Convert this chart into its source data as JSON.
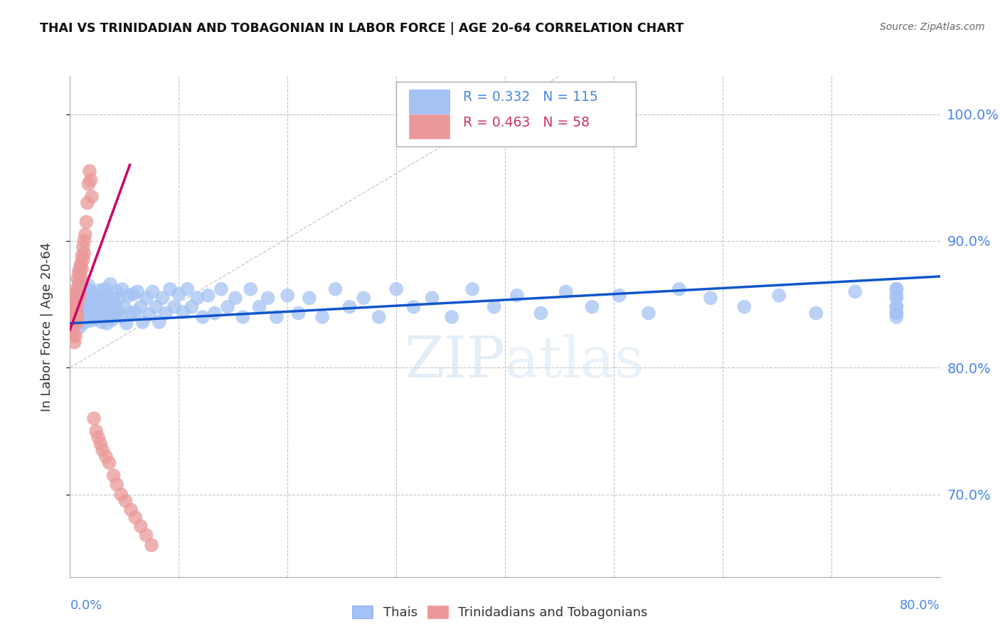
{
  "title": "THAI VS TRINIDADIAN AND TOBAGONIAN IN LABOR FORCE | AGE 20-64 CORRELATION CHART",
  "source": "Source: ZipAtlas.com",
  "ylabel": "In Labor Force | Age 20-64",
  "ytick_values": [
    0.7,
    0.8,
    0.9,
    1.0
  ],
  "xlim": [
    0.0,
    0.8
  ],
  "ylim": [
    0.635,
    1.03
  ],
  "color_blue": "#a4c2f4",
  "color_pink": "#ea9999",
  "color_blue_line": "#1155cc",
  "color_pink_line": "#cc0066",
  "color_axis_labels": "#4a86e8",
  "color_grid": "#b7b7b7",
  "blue_scatter_x": [
    0.005,
    0.007,
    0.008,
    0.009,
    0.01,
    0.01,
    0.011,
    0.012,
    0.013,
    0.014,
    0.015,
    0.015,
    0.016,
    0.016,
    0.017,
    0.018,
    0.018,
    0.019,
    0.02,
    0.021,
    0.022,
    0.022,
    0.023,
    0.024,
    0.025,
    0.026,
    0.027,
    0.028,
    0.029,
    0.03,
    0.031,
    0.032,
    0.033,
    0.034,
    0.035,
    0.036,
    0.037,
    0.038,
    0.039,
    0.04,
    0.042,
    0.043,
    0.044,
    0.045,
    0.047,
    0.048,
    0.05,
    0.052,
    0.054,
    0.056,
    0.058,
    0.06,
    0.062,
    0.065,
    0.067,
    0.07,
    0.073,
    0.076,
    0.079,
    0.082,
    0.085,
    0.088,
    0.092,
    0.096,
    0.1,
    0.104,
    0.108,
    0.112,
    0.117,
    0.122,
    0.127,
    0.133,
    0.139,
    0.145,
    0.152,
    0.159,
    0.166,
    0.174,
    0.182,
    0.19,
    0.2,
    0.21,
    0.22,
    0.232,
    0.244,
    0.257,
    0.27,
    0.284,
    0.3,
    0.316,
    0.333,
    0.351,
    0.37,
    0.39,
    0.411,
    0.433,
    0.456,
    0.48,
    0.505,
    0.532,
    0.56,
    0.589,
    0.62,
    0.652,
    0.686,
    0.722,
    0.76,
    0.76,
    0.76,
    0.76,
    0.76,
    0.76,
    0.76,
    0.76,
    0.76
  ],
  "blue_scatter_y": [
    0.845,
    0.838,
    0.85,
    0.832,
    0.857,
    0.842,
    0.868,
    0.835,
    0.852,
    0.841,
    0.862,
    0.848,
    0.855,
    0.84,
    0.865,
    0.85,
    0.837,
    0.86,
    0.848,
    0.843,
    0.858,
    0.838,
    0.853,
    0.84,
    0.856,
    0.844,
    0.861,
    0.849,
    0.836,
    0.855,
    0.843,
    0.862,
    0.848,
    0.835,
    0.857,
    0.841,
    0.866,
    0.851,
    0.838,
    0.854,
    0.842,
    0.86,
    0.845,
    0.855,
    0.84,
    0.862,
    0.848,
    0.835,
    0.857,
    0.843,
    0.858,
    0.844,
    0.86,
    0.848,
    0.836,
    0.855,
    0.842,
    0.86,
    0.848,
    0.836,
    0.855,
    0.843,
    0.862,
    0.848,
    0.858,
    0.844,
    0.862,
    0.848,
    0.855,
    0.84,
    0.857,
    0.843,
    0.862,
    0.848,
    0.855,
    0.84,
    0.862,
    0.848,
    0.855,
    0.84,
    0.857,
    0.843,
    0.855,
    0.84,
    0.862,
    0.848,
    0.855,
    0.84,
    0.862,
    0.848,
    0.855,
    0.84,
    0.862,
    0.848,
    0.857,
    0.843,
    0.86,
    0.848,
    0.857,
    0.843,
    0.862,
    0.855,
    0.848,
    0.857,
    0.843,
    0.86,
    0.848,
    0.862,
    0.843,
    0.857,
    0.862,
    0.855,
    0.848,
    0.843,
    0.84
  ],
  "pink_scatter_x": [
    0.002,
    0.002,
    0.003,
    0.003,
    0.003,
    0.004,
    0.004,
    0.004,
    0.004,
    0.005,
    0.005,
    0.005,
    0.005,
    0.006,
    0.006,
    0.006,
    0.006,
    0.007,
    0.007,
    0.007,
    0.007,
    0.008,
    0.008,
    0.008,
    0.009,
    0.009,
    0.009,
    0.01,
    0.01,
    0.011,
    0.011,
    0.012,
    0.012,
    0.013,
    0.013,
    0.014,
    0.015,
    0.016,
    0.017,
    0.018,
    0.019,
    0.02,
    0.022,
    0.024,
    0.026,
    0.028,
    0.03,
    0.033,
    0.036,
    0.04,
    0.043,
    0.047,
    0.051,
    0.056,
    0.06,
    0.065,
    0.07,
    0.075
  ],
  "pink_scatter_y": [
    0.845,
    0.83,
    0.85,
    0.84,
    0.825,
    0.852,
    0.842,
    0.835,
    0.82,
    0.858,
    0.848,
    0.838,
    0.825,
    0.862,
    0.855,
    0.845,
    0.835,
    0.87,
    0.86,
    0.85,
    0.84,
    0.875,
    0.865,
    0.855,
    0.878,
    0.868,
    0.858,
    0.882,
    0.872,
    0.888,
    0.878,
    0.895,
    0.885,
    0.9,
    0.89,
    0.905,
    0.915,
    0.93,
    0.945,
    0.955,
    0.948,
    0.935,
    0.76,
    0.75,
    0.745,
    0.74,
    0.735,
    0.73,
    0.725,
    0.715,
    0.708,
    0.7,
    0.695,
    0.688,
    0.682,
    0.675,
    0.668,
    0.66
  ],
  "blue_trend_x": [
    0.0,
    0.8
  ],
  "blue_trend_y": [
    0.835,
    0.872
  ],
  "pink_trend_x": [
    0.0,
    0.055
  ],
  "pink_trend_y": [
    0.83,
    0.96
  ],
  "diag_line_x": [
    0.0,
    0.45
  ],
  "diag_line_y": [
    0.8,
    1.03
  ]
}
